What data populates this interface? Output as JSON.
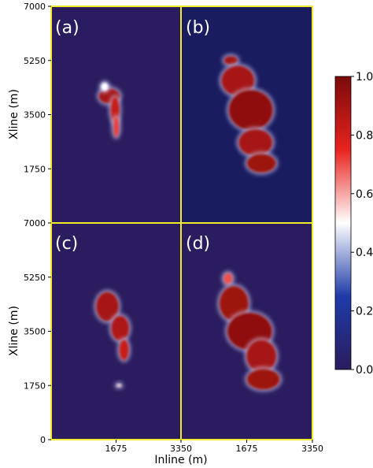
{
  "chart_data": {
    "type": "heatmap",
    "panels": [
      {
        "label": "(a)",
        "x_range": [
          0,
          3350
        ],
        "y_range": [
          0,
          7000
        ],
        "blobs": [
          {
            "cx": 1500,
            "cy": 4100,
            "rx": 270,
            "ry": 240,
            "value": 0.9
          },
          {
            "cx": 1650,
            "cy": 3650,
            "rx": 110,
            "ry": 420,
            "value": 0.82
          },
          {
            "cx": 1680,
            "cy": 3100,
            "rx": 70,
            "ry": 330,
            "value": 0.72
          },
          {
            "cx": 1380,
            "cy": 4400,
            "rx": 90,
            "ry": 130,
            "value": 0.5
          }
        ]
      },
      {
        "label": "(b)",
        "x_range": [
          0,
          3350
        ],
        "y_range": [
          0,
          7000
        ],
        "blobs": [
          {
            "cx": 1270,
            "cy": 5250,
            "rx": 170,
            "ry": 140,
            "value": 0.9
          },
          {
            "cx": 1450,
            "cy": 4600,
            "rx": 420,
            "ry": 480,
            "value": 0.9
          },
          {
            "cx": 1780,
            "cy": 3650,
            "rx": 560,
            "ry": 650,
            "value": 0.95
          },
          {
            "cx": 1900,
            "cy": 2600,
            "rx": 430,
            "ry": 430,
            "value": 0.9
          },
          {
            "cx": 2050,
            "cy": 1930,
            "rx": 370,
            "ry": 300,
            "value": 0.92
          }
        ]
      },
      {
        "label": "(c)",
        "x_range": [
          0,
          3350
        ],
        "y_range": [
          0,
          7000
        ],
        "blobs": [
          {
            "cx": 1450,
            "cy": 4300,
            "rx": 290,
            "ry": 470,
            "value": 0.9
          },
          {
            "cx": 1780,
            "cy": 3600,
            "rx": 230,
            "ry": 400,
            "value": 0.88
          },
          {
            "cx": 1880,
            "cy": 2900,
            "rx": 120,
            "ry": 330,
            "value": 0.82
          },
          {
            "cx": 1750,
            "cy": 1750,
            "rx": 60,
            "ry": 50,
            "value": 0.55
          }
        ]
      },
      {
        "label": "(d)",
        "x_range": [
          0,
          3350
        ],
        "y_range": [
          0,
          7000
        ],
        "blobs": [
          {
            "cx": 1200,
            "cy": 5200,
            "rx": 110,
            "ry": 180,
            "value": 0.7
          },
          {
            "cx": 1350,
            "cy": 4400,
            "rx": 370,
            "ry": 560,
            "value": 0.92
          },
          {
            "cx": 1750,
            "cy": 3500,
            "rx": 570,
            "ry": 600,
            "value": 0.95
          },
          {
            "cx": 2050,
            "cy": 2700,
            "rx": 380,
            "ry": 520,
            "value": 0.9
          },
          {
            "cx": 2100,
            "cy": 1950,
            "rx": 420,
            "ry": 330,
            "value": 0.92
          }
        ]
      }
    ],
    "axes": {
      "ylabel": "Xline (m)",
      "xlabel": "Inline (m)",
      "yticks": [
        "7000",
        "5250",
        "3500",
        "1750",
        "0"
      ],
      "xticks": [
        "1675",
        "3350"
      ]
    },
    "colorbar": {
      "ticks": [
        "1.0",
        "0.8",
        "0.6",
        "0.4",
        "0.2",
        "0.0"
      ],
      "range": [
        0,
        1
      ],
      "colors": [
        "#2a1c5e",
        "#1f3ba8",
        "#ffffff",
        "#e8231f",
        "#7a0a0a"
      ]
    },
    "frame_color": "#f2ea2c"
  }
}
